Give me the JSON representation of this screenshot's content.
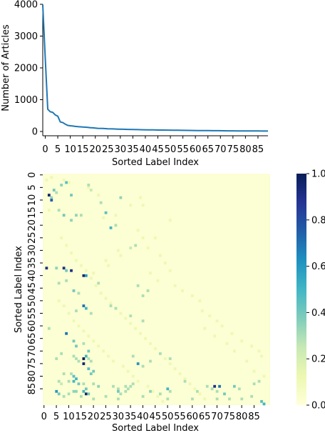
{
  "chart_data": [
    {
      "type": "line",
      "xlabel": "Sorted Label Index",
      "ylabel": "Number of Articles",
      "xlim": [
        0,
        90
      ],
      "ylim": [
        0,
        4000
      ],
      "xticks": [
        0,
        5,
        10,
        15,
        20,
        25,
        30,
        35,
        40,
        45,
        50,
        55,
        60,
        65,
        70,
        75,
        80,
        85
      ],
      "xtick_labels": [
        "0",
        "5",
        "10",
        "15",
        "20",
        "25",
        "30",
        "35",
        "40",
        "45",
        "50",
        "55",
        "60",
        "65",
        "70",
        "75",
        "80",
        "85"
      ],
      "yticks": [
        0,
        1000,
        2000,
        3000,
        4000
      ],
      "ytick_labels": [
        "0",
        "1000",
        "2000",
        "3000",
        "4000"
      ],
      "line_color": "#1f77b4",
      "series": [
        {
          "x": [
            0,
            1,
            2,
            3,
            4,
            5,
            6,
            7,
            8,
            9,
            10,
            11,
            12,
            13,
            14,
            15,
            16,
            17,
            18,
            19,
            20,
            22,
            24,
            26,
            28,
            30,
            32,
            34,
            36,
            38,
            40,
            42,
            44,
            46,
            48,
            50,
            52,
            54,
            56,
            58,
            60,
            62,
            64,
            66,
            68,
            70,
            72,
            74,
            76,
            78,
            80,
            82,
            84,
            86,
            88,
            90
          ],
          "y": [
            3980,
            2300,
            700,
            620,
            600,
            520,
            480,
            300,
            280,
            230,
            190,
            180,
            170,
            160,
            150,
            145,
            140,
            135,
            130,
            120,
            115,
            100,
            95,
            85,
            80,
            75,
            70,
            66,
            62,
            58,
            55,
            52,
            49,
            46,
            44,
            42,
            40,
            38,
            36,
            34,
            32,
            30,
            28,
            26,
            25,
            24,
            22,
            21,
            20,
            19,
            18,
            17,
            16,
            15,
            14,
            13
          ]
        }
      ]
    },
    {
      "type": "heatmap",
      "xlabel": "Sorted Label Index",
      "ylabel": "Sorted Label Index",
      "size": 92,
      "xticks": [
        0,
        5,
        10,
        15,
        20,
        25,
        30,
        35,
        40,
        45,
        50,
        55,
        60,
        65,
        70,
        75,
        80,
        85
      ],
      "xtick_labels": [
        "0",
        "5",
        "10",
        "15",
        "20",
        "25",
        "30",
        "35",
        "40",
        "45",
        "50",
        "55",
        "60",
        "65",
        "70",
        "75",
        "80",
        "85"
      ],
      "yticks": [
        0,
        5,
        10,
        15,
        20,
        25,
        30,
        35,
        40,
        45,
        50,
        55,
        60,
        65,
        70,
        75,
        80,
        85
      ],
      "ytick_labels": [
        "0",
        "5",
        "10",
        "15",
        "20",
        "25",
        "30",
        "35",
        "40",
        "45",
        "50",
        "55",
        "60",
        "65",
        "70",
        "75",
        "80",
        "85"
      ],
      "colorbar": {
        "range": [
          0,
          1
        ],
        "ticks": [
          0,
          0.2,
          0.4,
          0.6,
          0.8,
          1.0
        ],
        "tick_labels": [
          "0.0",
          "0.2",
          "0.4",
          "0.6",
          "0.8",
          "1.0"
        ],
        "colormap": "YlGnBu",
        "stops": [
          "#ffffd9",
          "#edf8b1",
          "#c7e9b4",
          "#7fcdbb",
          "#41b6c4",
          "#1d91c0",
          "#225ea8",
          "#253494",
          "#081d58"
        ]
      },
      "cells": [
        [
          3,
          9,
          0.35
        ],
        [
          5,
          7,
          0.3
        ],
        [
          7,
          4,
          0.35
        ],
        [
          9,
          3,
          0.45
        ],
        [
          2,
          8,
          0.95
        ],
        [
          3,
          10,
          0.75
        ],
        [
          4,
          6,
          0.4
        ],
        [
          11,
          8,
          0.4
        ],
        [
          6,
          14,
          0.3
        ],
        [
          18,
          4,
          0.3
        ],
        [
          19,
          6,
          0.25
        ],
        [
          23,
          11,
          0.3
        ],
        [
          25,
          15,
          0.45
        ],
        [
          27,
          21,
          0.5
        ],
        [
          29,
          20,
          0.3
        ],
        [
          31,
          9,
          0.35
        ],
        [
          8,
          16,
          0.4
        ],
        [
          11,
          18,
          0.35
        ],
        [
          13,
          16,
          0.35
        ],
        [
          15,
          16,
          0.3
        ],
        [
          35,
          29,
          0.25
        ],
        [
          37,
          28,
          0.3
        ],
        [
          1,
          37,
          0.9
        ],
        [
          5,
          37,
          0.35
        ],
        [
          8,
          37,
          0.9
        ],
        [
          9,
          38,
          0.4
        ],
        [
          11,
          38,
          0.9
        ],
        [
          16,
          40,
          0.95
        ],
        [
          17,
          40,
          0.6
        ],
        [
          9,
          42,
          0.3
        ],
        [
          6,
          43,
          0.3
        ],
        [
          12,
          46,
          0.4
        ],
        [
          14,
          47,
          0.3
        ],
        [
          22,
          43,
          0.3
        ],
        [
          38,
          44,
          0.3
        ],
        [
          40,
          48,
          0.3
        ],
        [
          42,
          46,
          0.3
        ],
        [
          16,
          52,
          0.7
        ],
        [
          17,
          53,
          0.5
        ],
        [
          13,
          54,
          0.3
        ],
        [
          19,
          55,
          0.3
        ],
        [
          27,
          52,
          0.3
        ],
        [
          29,
          53,
          0.3
        ],
        [
          35,
          56,
          0.3
        ],
        [
          40,
          58,
          0.3
        ],
        [
          2,
          61,
          0.3
        ],
        [
          9,
          63,
          0.7
        ],
        [
          12,
          66,
          0.4
        ],
        [
          13,
          68,
          0.4
        ],
        [
          16,
          67,
          0.3
        ],
        [
          18,
          70,
          0.4
        ],
        [
          16,
          73,
          1.0
        ],
        [
          16,
          75,
          0.95
        ],
        [
          17,
          72,
          0.5
        ],
        [
          18,
          77,
          0.45
        ],
        [
          19,
          79,
          0.4
        ],
        [
          20,
          78,
          0.4
        ],
        [
          18,
          73,
          0.3
        ],
        [
          19,
          74,
          0.3
        ],
        [
          12,
          72,
          0.3
        ],
        [
          13,
          73,
          0.3
        ],
        [
          14,
          74,
          0.3
        ],
        [
          5,
          73,
          0.3
        ],
        [
          7,
          71,
          0.3
        ],
        [
          8,
          79,
          0.3
        ],
        [
          11,
          79,
          0.3
        ],
        [
          12,
          80,
          0.45
        ],
        [
          13,
          81,
          0.5
        ],
        [
          38,
          75,
          0.6
        ],
        [
          36,
          72,
          0.3
        ],
        [
          40,
          76,
          0.3
        ],
        [
          43,
          74,
          0.3
        ],
        [
          47,
          71,
          0.3
        ],
        [
          51,
          73,
          0.3
        ],
        [
          6,
          82,
          0.3
        ],
        [
          7,
          83,
          0.25
        ],
        [
          10,
          82,
          0.3
        ],
        [
          12,
          82,
          0.5
        ],
        [
          14,
          83,
          0.4
        ],
        [
          16,
          83,
          0.3
        ],
        [
          17,
          85,
          0.4
        ],
        [
          20,
          83,
          0.3
        ],
        [
          22,
          84,
          0.35
        ],
        [
          28,
          84,
          0.3
        ],
        [
          30,
          85,
          0.3
        ],
        [
          33,
          84,
          0.3
        ],
        [
          35,
          84,
          0.3
        ],
        [
          36,
          83,
          0.3
        ],
        [
          50,
          85,
          0.5
        ],
        [
          57,
          82,
          0.3
        ],
        [
          62,
          86,
          0.3
        ],
        [
          66,
          84,
          0.3
        ],
        [
          68,
          85,
          0.3
        ],
        [
          70,
          86,
          0.3
        ],
        [
          69,
          84,
          0.9
        ],
        [
          71,
          84,
          0.7
        ],
        [
          73,
          87,
          0.4
        ],
        [
          77,
          84,
          0.4
        ],
        [
          79,
          85,
          0.3
        ],
        [
          85,
          83,
          0.3
        ],
        [
          87,
          82,
          0.3
        ],
        [
          16,
          86,
          0.5
        ],
        [
          17,
          87,
          0.95
        ],
        [
          18,
          87,
          0.4
        ],
        [
          15,
          88,
          0.3
        ],
        [
          20,
          89,
          0.3
        ],
        [
          25,
          88,
          0.3
        ],
        [
          30,
          89,
          0.3
        ],
        [
          40,
          88,
          0.3
        ],
        [
          50,
          89,
          0.3
        ],
        [
          60,
          89,
          0.3
        ],
        [
          70,
          89,
          0.3
        ],
        [
          75,
          89,
          0.3
        ],
        [
          80,
          89,
          0.3
        ],
        [
          84,
          88,
          0.3
        ],
        [
          88,
          90,
          0.45
        ],
        [
          89,
          91,
          0.5
        ],
        [
          5,
          86,
          0.6
        ],
        [
          6,
          87,
          0.4
        ],
        [
          8,
          88,
          0.3
        ],
        [
          10,
          87,
          0.3
        ],
        [
          12,
          86,
          0.35
        ],
        [
          13,
          86,
          0.35
        ],
        [
          30,
          86,
          0.4
        ],
        [
          31,
          87,
          0.3
        ],
        [
          33,
          86,
          0.3
        ],
        [
          34,
          85,
          0.3
        ],
        [
          43,
          86,
          0.35
        ],
        [
          47,
          87,
          0.3
        ],
        [
          51,
          86,
          0.3
        ]
      ],
      "pale_cells": [
        [
          1,
          2
        ],
        [
          3,
          1
        ],
        [
          8,
          2
        ],
        [
          2,
          14
        ],
        [
          10,
          3
        ],
        [
          18,
          5
        ],
        [
          22,
          8
        ],
        [
          35,
          12
        ],
        [
          39,
          9
        ],
        [
          40,
          12
        ],
        [
          51,
          18
        ],
        [
          29,
          16
        ],
        [
          24,
          17
        ],
        [
          38,
          22
        ],
        [
          40,
          25
        ],
        [
          42,
          29
        ],
        [
          45,
          25
        ],
        [
          47,
          32
        ],
        [
          49,
          35
        ],
        [
          51,
          38
        ],
        [
          30,
          30
        ],
        [
          31,
          32
        ],
        [
          25,
          34
        ],
        [
          26,
          36
        ],
        [
          20,
          39
        ],
        [
          43,
          39
        ],
        [
          46,
          42
        ],
        [
          53,
          44
        ],
        [
          56,
          46
        ],
        [
          60,
          48
        ],
        [
          63,
          50
        ],
        [
          64,
          54
        ],
        [
          67,
          56
        ],
        [
          70,
          58
        ],
        [
          72,
          60
        ],
        [
          76,
          63
        ],
        [
          80,
          66
        ],
        [
          84,
          68
        ],
        [
          87,
          70
        ],
        [
          88,
          72
        ],
        [
          65,
          61
        ],
        [
          69,
          64
        ],
        [
          74,
          67
        ],
        [
          77,
          70
        ],
        [
          82,
          74
        ],
        [
          85,
          78
        ],
        [
          89,
          80
        ],
        [
          7,
          25
        ],
        [
          9,
          28
        ],
        [
          11,
          31
        ],
        [
          13,
          34
        ],
        [
          15,
          36
        ],
        [
          17,
          38
        ],
        [
          19,
          41
        ],
        [
          21,
          44
        ],
        [
          23,
          47
        ],
        [
          25,
          49
        ],
        [
          27,
          51
        ],
        [
          29,
          53
        ],
        [
          31,
          55
        ],
        [
          33,
          57
        ],
        [
          35,
          59
        ],
        [
          37,
          61
        ],
        [
          39,
          63
        ],
        [
          41,
          65
        ],
        [
          43,
          67
        ],
        [
          45,
          69
        ],
        [
          47,
          71
        ],
        [
          49,
          73
        ],
        [
          51,
          75
        ],
        [
          53,
          77
        ],
        [
          55,
          79
        ],
        [
          57,
          81
        ],
        [
          59,
          83
        ],
        [
          61,
          85
        ],
        [
          63,
          87
        ],
        [
          65,
          89
        ],
        [
          6,
          50
        ],
        [
          8,
          52
        ],
        [
          10,
          55
        ],
        [
          12,
          58
        ],
        [
          14,
          60
        ],
        [
          16,
          62
        ],
        [
          18,
          64
        ],
        [
          20,
          66
        ],
        [
          22,
          68
        ],
        [
          24,
          70
        ],
        [
          26,
          72
        ],
        [
          28,
          74
        ],
        [
          32,
          76
        ],
        [
          34,
          78
        ],
        [
          36,
          80
        ],
        [
          38,
          82
        ],
        [
          42,
          84
        ],
        [
          44,
          86
        ],
        [
          46,
          88
        ],
        [
          48,
          90
        ]
      ]
    }
  ]
}
